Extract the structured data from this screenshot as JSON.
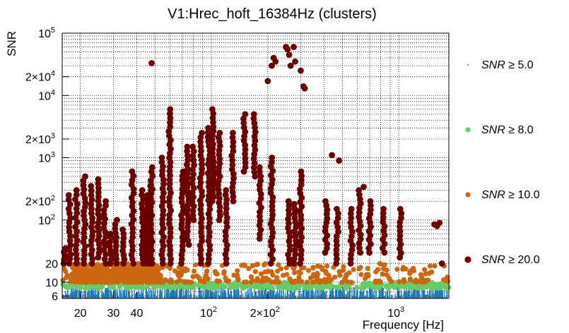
{
  "chart_data": {
    "type": "scatter",
    "title": "V1:Hrec_hoft_16384Hz (clusters)",
    "xlabel": "Frequency [Hz]",
    "ylabel": "SNR",
    "xscale": "log",
    "yscale": "log",
    "xlim": [
      16,
      1850
    ],
    "ylim": [
      5.5,
      100000
    ],
    "grid": true,
    "legend_position": "right",
    "x_ticks": [
      {
        "value": 20,
        "label": "20"
      },
      {
        "value": 30,
        "label": "30"
      },
      {
        "value": 40,
        "label": "40"
      },
      {
        "value": 100,
        "label": "10",
        "exp": "2"
      },
      {
        "value": 200,
        "label": "2×10",
        "exp": "2"
      },
      {
        "value": 1000,
        "label": "10",
        "exp": "3"
      }
    ],
    "y_ticks": [
      {
        "value": 6,
        "label": "6"
      },
      {
        "value": 10,
        "label": "10"
      },
      {
        "value": 20,
        "label": "20"
      },
      {
        "value": 100,
        "label": "10",
        "exp": "2"
      },
      {
        "value": 200,
        "label": "2×10",
        "exp": "2"
      },
      {
        "value": 1000,
        "label": "10",
        "exp": "3"
      },
      {
        "value": 2000,
        "label": "2×10",
        "exp": "3"
      },
      {
        "value": 10000,
        "label": "10",
        "exp": "4"
      },
      {
        "value": 20000,
        "label": "2×10",
        "exp": "4"
      },
      {
        "value": 100000,
        "label": "10",
        "exp": "5"
      }
    ],
    "series": [
      {
        "name": "SNR ≥ 5.0",
        "color": "#1f77b4",
        "marker": "dot",
        "band": [
          5.5,
          9
        ]
      },
      {
        "name": "SNR ≥ 8.0",
        "color": "#66cc66",
        "marker": "circle",
        "band": [
          8,
          10
        ]
      },
      {
        "name": "SNR ≥ 10.0",
        "color": "#cc6611",
        "marker": "circle",
        "band": [
          10,
          20
        ]
      },
      {
        "name": "SNR ≥ 20.0",
        "color": "#6b0000",
        "marker": "circle",
        "columns": [
          {
            "x": 16.5,
            "ymin": 20,
            "ymax": 35
          },
          {
            "x": 17.5,
            "ymin": 20,
            "ymax": 250
          },
          {
            "x": 19,
            "ymin": 20,
            "ymax": 300
          },
          {
            "x": 21,
            "ymin": 20,
            "ymax": 500
          },
          {
            "x": 23,
            "ymin": 20,
            "ymax": 350
          },
          {
            "x": 25,
            "ymin": 25,
            "ymax": 450
          },
          {
            "x": 27,
            "ymin": 20,
            "ymax": 200
          },
          {
            "x": 29,
            "ymin": 20,
            "ymax": 60
          },
          {
            "x": 31,
            "ymin": 20,
            "ymax": 100
          },
          {
            "x": 34,
            "ymin": 20,
            "ymax": 70
          },
          {
            "x": 38,
            "ymin": 20,
            "ymax": 600
          },
          {
            "x": 43,
            "ymin": 20,
            "ymax": 300
          },
          {
            "x": 45,
            "ymin": 20,
            "ymax": 250
          },
          {
            "x": 47,
            "ymin": 20,
            "ymax": 350
          },
          {
            "x": 48,
            "ymin": 20,
            "ymax": 700
          },
          {
            "x": 55,
            "ymin": 20,
            "ymax": 1000
          },
          {
            "x": 60,
            "ymin": 20,
            "ymax": 6000
          },
          {
            "x": 70,
            "ymin": 20,
            "ymax": 600
          },
          {
            "x": 75,
            "ymin": 40,
            "ymax": 1500
          },
          {
            "x": 80,
            "ymin": 100,
            "ymax": 1500
          },
          {
            "x": 88,
            "ymin": 20,
            "ymax": 2500
          },
          {
            "x": 97,
            "ymin": 20,
            "ymax": 3000
          },
          {
            "x": 102,
            "ymin": 200,
            "ymax": 6000
          },
          {
            "x": 110,
            "ymin": 100,
            "ymax": 2500
          },
          {
            "x": 120,
            "ymin": 20,
            "ymax": 300
          },
          {
            "x": 130,
            "ymin": 200,
            "ymax": 2500
          },
          {
            "x": 150,
            "ymin": 600,
            "ymax": 5000
          },
          {
            "x": 170,
            "ymin": 500,
            "ymax": 5000
          },
          {
            "x": 182,
            "ymin": 50,
            "ymax": 700
          },
          {
            "x": 210,
            "ymin": 20,
            "ymax": 1000
          },
          {
            "x": 260,
            "ymin": 20,
            "ymax": 200
          },
          {
            "x": 280,
            "ymin": 20,
            "ymax": 180
          },
          {
            "x": 300,
            "ymin": 20,
            "ymax": 600
          },
          {
            "x": 410,
            "ymin": 30,
            "ymax": 200
          },
          {
            "x": 470,
            "ymin": 20,
            "ymax": 150
          },
          {
            "x": 560,
            "ymin": 20,
            "ymax": 150
          },
          {
            "x": 620,
            "ymin": 30,
            "ymax": 300
          },
          {
            "x": 700,
            "ymin": 30,
            "ymax": 200
          },
          {
            "x": 830,
            "ymin": 30,
            "ymax": 150
          },
          {
            "x": 1020,
            "ymin": 25,
            "ymax": 150
          }
        ],
        "points": [
          {
            "x": 48,
            "y": 33000
          },
          {
            "x": 200,
            "y": 17000
          },
          {
            "x": 210,
            "y": 30000
          },
          {
            "x": 215,
            "y": 40000
          },
          {
            "x": 220,
            "y": 35000
          },
          {
            "x": 250,
            "y": 60000
          },
          {
            "x": 255,
            "y": 55000
          },
          {
            "x": 260,
            "y": 45000
          },
          {
            "x": 265,
            "y": 30000
          },
          {
            "x": 275,
            "y": 60000
          },
          {
            "x": 280,
            "y": 35000
          },
          {
            "x": 300,
            "y": 25000
          },
          {
            "x": 310,
            "y": 14000
          },
          {
            "x": 315,
            "y": 13000
          },
          {
            "x": 440,
            "y": 1100
          },
          {
            "x": 480,
            "y": 900
          },
          {
            "x": 650,
            "y": 340
          },
          {
            "x": 1550,
            "y": 85
          },
          {
            "x": 1600,
            "y": 80
          },
          {
            "x": 1650,
            "y": 90
          },
          {
            "x": 1700,
            "y": 20
          }
        ]
      }
    ]
  }
}
